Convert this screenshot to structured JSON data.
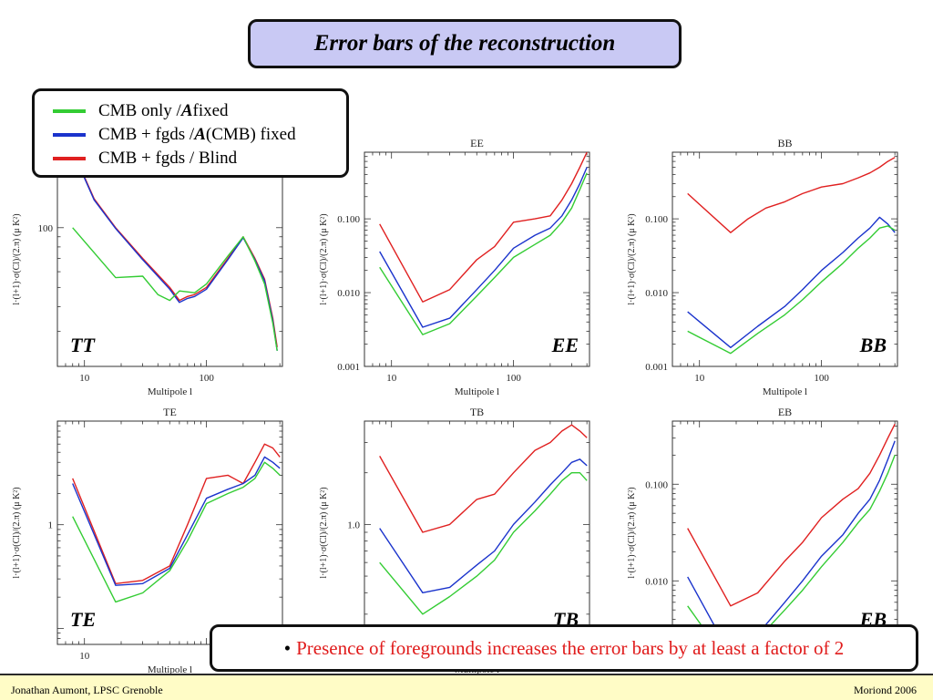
{
  "slide": {
    "title": "Error bars of the reconstruction",
    "note_bullet": "•",
    "note": "Presence of foregrounds increases the error bars by at least a factor of 2",
    "footer_left": "Jonathan Aumont, LPSC Grenoble",
    "footer_right": "Moriond 2006"
  },
  "legend": [
    {
      "prefix": "CMB only / ",
      "emph": "A",
      "suffix": " fixed",
      "color": "#33cc33"
    },
    {
      "prefix": "CMB + fgds / ",
      "emph": "A",
      "suffix": "(CMB) fixed",
      "color": "#1a33cc"
    },
    {
      "prefix": "CMB + fgds / Blind",
      "emph": "",
      "suffix": "",
      "color": "#e02020"
    }
  ],
  "chart_data": [
    {
      "type": "line",
      "panel": "TT",
      "title": "",
      "panel_label": "TT",
      "xlabel": "Multipole l",
      "ylabel": "l·(l+1)·σ(Cl)/(2.π) (μ K²)",
      "x_scale": "log",
      "y_scale": "log",
      "xlim": [
        6,
        420
      ],
      "ylim": [
        20,
        240
      ],
      "xticks": [
        10,
        100
      ],
      "xtick_labels": [
        "10",
        "100"
      ],
      "yticks": [
        100
      ],
      "ytick_labels": [
        "100"
      ],
      "series": [
        {
          "color": "#e02020",
          "x": [
            8,
            10,
            12,
            18,
            30,
            50,
            60,
            70,
            80,
            100,
            150,
            200,
            250,
            300,
            350,
            380
          ],
          "y": [
            240,
            180,
            140,
            100,
            70,
            50,
            43,
            45,
            46,
            50,
            70,
            90,
            70,
            55,
            35,
            25
          ]
        },
        {
          "color": "#1a33cc",
          "x": [
            8,
            10,
            12,
            18,
            30,
            50,
            60,
            70,
            80,
            100,
            150,
            200,
            250,
            300,
            350,
            380
          ],
          "y": [
            238,
            178,
            138,
            99,
            69,
            49,
            42,
            44,
            45,
            49,
            69,
            89,
            69,
            54,
            34,
            24
          ]
        },
        {
          "color": "#33cc33",
          "x": [
            8,
            18,
            30,
            40,
            50,
            60,
            80,
            100,
            150,
            200,
            250,
            300,
            350,
            380
          ],
          "y": [
            100,
            56,
            57,
            46,
            43,
            48,
            47,
            52,
            72,
            90,
            68,
            52,
            33,
            24
          ]
        }
      ]
    },
    {
      "type": "line",
      "panel": "EE",
      "title": "EE",
      "panel_label": "EE",
      "xlabel": "Multipole l",
      "ylabel": "l·(l+1)·σ(Cl)/(2.π) (μ K²)",
      "x_scale": "log",
      "y_scale": "log",
      "xlim": [
        6,
        420
      ],
      "ylim": [
        0.001,
        0.8
      ],
      "xticks": [
        10,
        100
      ],
      "xtick_labels": [
        "10",
        "100"
      ],
      "yticks": [
        0.001,
        0.01,
        0.1
      ],
      "ytick_labels": [
        "0.001",
        "0.010",
        "0.100"
      ],
      "series": [
        {
          "color": "#e02020",
          "x": [
            8,
            18,
            30,
            50,
            70,
            100,
            150,
            200,
            250,
            300,
            350,
            400
          ],
          "y": [
            0.085,
            0.0075,
            0.011,
            0.028,
            0.042,
            0.09,
            0.1,
            0.11,
            0.18,
            0.3,
            0.5,
            0.8
          ]
        },
        {
          "color": "#1a33cc",
          "x": [
            8,
            18,
            30,
            50,
            70,
            100,
            150,
            200,
            250,
            300,
            350,
            400
          ],
          "y": [
            0.036,
            0.0034,
            0.0045,
            0.011,
            0.02,
            0.04,
            0.06,
            0.075,
            0.11,
            0.18,
            0.3,
            0.5
          ]
        },
        {
          "color": "#33cc33",
          "x": [
            8,
            18,
            30,
            50,
            70,
            100,
            150,
            200,
            250,
            300,
            350,
            400
          ],
          "y": [
            0.022,
            0.0027,
            0.0038,
            0.009,
            0.016,
            0.03,
            0.045,
            0.06,
            0.09,
            0.14,
            0.25,
            0.42
          ]
        }
      ]
    },
    {
      "type": "line",
      "panel": "BB",
      "title": "BB",
      "panel_label": "BB",
      "xlabel": "Multipole l",
      "ylabel": "l·(l+1)·σ(Cl)/(2.π) (μ K²)",
      "x_scale": "log",
      "y_scale": "log",
      "xlim": [
        6,
        420
      ],
      "ylim": [
        0.001,
        0.8
      ],
      "xticks": [
        10,
        100
      ],
      "xtick_labels": [
        "10",
        "100"
      ],
      "yticks": [
        0.001,
        0.01,
        0.1
      ],
      "ytick_labels": [
        "0.001",
        "0.010",
        "0.100"
      ],
      "series": [
        {
          "color": "#e02020",
          "x": [
            8,
            18,
            25,
            35,
            50,
            70,
            100,
            150,
            200,
            250,
            300,
            350,
            400
          ],
          "y": [
            0.22,
            0.065,
            0.1,
            0.14,
            0.17,
            0.22,
            0.27,
            0.3,
            0.36,
            0.42,
            0.5,
            0.6,
            0.68
          ]
        },
        {
          "color": "#1a33cc",
          "x": [
            8,
            18,
            30,
            50,
            70,
            100,
            150,
            200,
            250,
            300,
            350,
            400
          ],
          "y": [
            0.0055,
            0.0018,
            0.0035,
            0.0065,
            0.011,
            0.02,
            0.035,
            0.055,
            0.075,
            0.105,
            0.085,
            0.065
          ]
        },
        {
          "color": "#33cc33",
          "x": [
            8,
            18,
            30,
            50,
            70,
            100,
            150,
            200,
            250,
            300,
            350,
            400
          ],
          "y": [
            0.003,
            0.0015,
            0.0028,
            0.005,
            0.008,
            0.014,
            0.025,
            0.04,
            0.055,
            0.075,
            0.08,
            0.07
          ]
        }
      ]
    },
    {
      "type": "line",
      "panel": "TE",
      "title": "TE",
      "panel_label": "TE",
      "xlabel": "Multipole l",
      "ylabel": "l·(l+1)·σ(Cl)/(2.π) (μ K²)",
      "x_scale": "log",
      "y_scale": "log",
      "xlim": [
        6,
        420
      ],
      "ylim": [
        0.07,
        10
      ],
      "xticks": [
        10
      ],
      "xtick_labels": [
        "10"
      ],
      "yticks": [
        1
      ],
      "ytick_labels": [
        "1"
      ],
      "series": [
        {
          "color": "#e02020",
          "x": [
            8,
            18,
            30,
            50,
            70,
            100,
            150,
            200,
            250,
            300,
            350,
            400
          ],
          "y": [
            2.8,
            0.27,
            0.29,
            0.4,
            1.0,
            2.8,
            3.0,
            2.5,
            4.0,
            6.0,
            5.5,
            4.5
          ]
        },
        {
          "color": "#1a33cc",
          "x": [
            8,
            18,
            30,
            50,
            70,
            100,
            150,
            200,
            250,
            300,
            350,
            400
          ],
          "y": [
            2.5,
            0.26,
            0.27,
            0.38,
            0.8,
            1.8,
            2.2,
            2.5,
            3.0,
            4.5,
            4.0,
            3.5
          ]
        },
        {
          "color": "#33cc33",
          "x": [
            8,
            18,
            30,
            50,
            70,
            100,
            150,
            200,
            250,
            300,
            350,
            400
          ],
          "y": [
            1.2,
            0.18,
            0.22,
            0.36,
            0.7,
            1.6,
            2.0,
            2.3,
            2.8,
            4.0,
            3.5,
            3.0
          ]
        }
      ]
    },
    {
      "type": "line",
      "panel": "TB",
      "title": "TB",
      "panel_label": "TB",
      "xlabel": "Multipole l",
      "ylabel": "l·(l+1)·σ(Cl)/(2.π) (μ K²)",
      "x_scale": "log",
      "y_scale": "log",
      "xlim": [
        6,
        420
      ],
      "ylim": [
        0.2,
        4.0
      ],
      "xticks": [],
      "xtick_labels": [],
      "yticks": [
        1
      ],
      "ytick_labels": [
        "1.0"
      ],
      "series": [
        {
          "color": "#e02020",
          "x": [
            8,
            18,
            30,
            50,
            70,
            100,
            150,
            200,
            250,
            300,
            350,
            400
          ],
          "y": [
            2.5,
            0.9,
            1.0,
            1.4,
            1.5,
            2.0,
            2.7,
            3.0,
            3.5,
            3.8,
            3.5,
            3.2
          ]
        },
        {
          "color": "#1a33cc",
          "x": [
            8,
            18,
            30,
            50,
            70,
            100,
            150,
            200,
            250,
            300,
            350,
            400
          ],
          "y": [
            0.95,
            0.4,
            0.43,
            0.58,
            0.7,
            1.0,
            1.35,
            1.7,
            2.0,
            2.3,
            2.4,
            2.2
          ]
        },
        {
          "color": "#33cc33",
          "x": [
            8,
            18,
            30,
            50,
            70,
            100,
            150,
            200,
            250,
            300,
            350,
            400
          ],
          "y": [
            0.6,
            0.3,
            0.38,
            0.5,
            0.62,
            0.9,
            1.2,
            1.5,
            1.8,
            2.0,
            2.0,
            1.8
          ]
        }
      ]
    },
    {
      "type": "line",
      "panel": "EB",
      "title": "EB",
      "panel_label": "EB",
      "xlabel": "",
      "ylabel": "l·(l+1)·σ(Cl)/(2.π) (μ K²)",
      "x_scale": "log",
      "y_scale": "log",
      "xlim": [
        6,
        420
      ],
      "ylim": [
        0.0022,
        0.45
      ],
      "xticks": [],
      "xtick_labels": [],
      "yticks": [
        0.01,
        0.1
      ],
      "ytick_labels": [
        "0.010",
        "0.100"
      ],
      "series": [
        {
          "color": "#e02020",
          "x": [
            8,
            18,
            30,
            50,
            70,
            100,
            150,
            200,
            250,
            300,
            350,
            400
          ],
          "y": [
            0.035,
            0.0055,
            0.0075,
            0.016,
            0.025,
            0.045,
            0.07,
            0.09,
            0.13,
            0.2,
            0.3,
            0.42
          ]
        },
        {
          "color": "#1a33cc",
          "x": [
            8,
            18,
            30,
            50,
            70,
            100,
            150,
            200,
            250,
            300,
            350,
            400
          ],
          "y": [
            0.011,
            0.0017,
            0.0028,
            0.006,
            0.01,
            0.018,
            0.03,
            0.05,
            0.07,
            0.11,
            0.18,
            0.28
          ]
        },
        {
          "color": "#33cc33",
          "x": [
            8,
            18,
            30,
            50,
            70,
            100,
            150,
            200,
            250,
            300,
            350,
            400
          ],
          "y": [
            0.0055,
            0.0013,
            0.0025,
            0.005,
            0.008,
            0.014,
            0.025,
            0.04,
            0.055,
            0.085,
            0.13,
            0.2
          ]
        }
      ]
    }
  ]
}
